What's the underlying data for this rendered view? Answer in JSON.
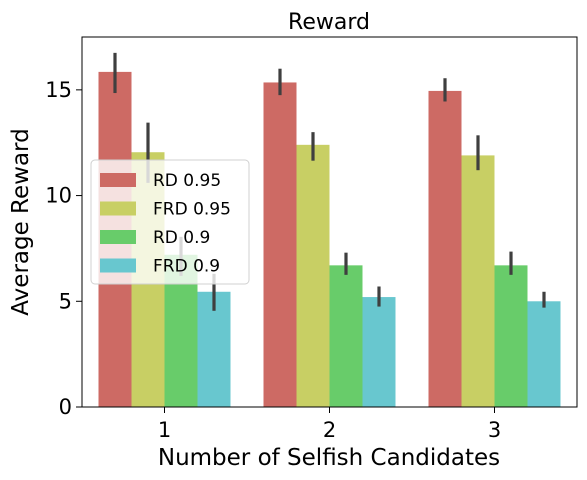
{
  "chart_data": {
    "type": "bar",
    "title": "Reward",
    "xlabel": "Number of Selfish Candidates",
    "ylabel": "Average Reward",
    "categories": [
      "1",
      "2",
      "3"
    ],
    "ylim": [
      0,
      17.5
    ],
    "yticks": [
      0,
      5,
      10,
      15
    ],
    "grid": false,
    "legend_position": "center-left",
    "error_bars": true,
    "series": [
      {
        "name": "RD 0.95",
        "color": "#cd6a64",
        "values": [
          15.85,
          15.35,
          14.95
        ],
        "err_low": [
          14.85,
          14.75,
          14.45
        ],
        "err_high": [
          16.75,
          16.0,
          15.55
        ]
      },
      {
        "name": "FRD 0.95",
        "color": "#c8cf64",
        "values": [
          12.05,
          12.4,
          11.9
        ],
        "err_low": [
          10.6,
          11.65,
          11.2
        ],
        "err_high": [
          13.45,
          13.0,
          12.85
        ]
      },
      {
        "name": "RD 0.9",
        "color": "#68cc6a",
        "values": [
          7.2,
          6.7,
          6.7
        ],
        "err_low": [
          6.2,
          6.25,
          6.25
        ],
        "err_high": [
          8.05,
          7.3,
          7.35
        ]
      },
      {
        "name": "FRD 0.9",
        "color": "#68c7cf",
        "values": [
          5.45,
          5.2,
          5.0
        ],
        "err_low": [
          4.55,
          4.75,
          4.7
        ],
        "err_high": [
          6.3,
          5.7,
          5.45
        ]
      }
    ]
  }
}
